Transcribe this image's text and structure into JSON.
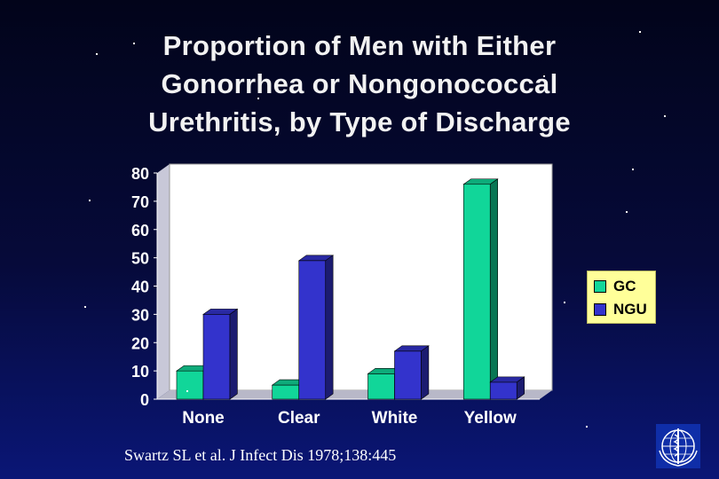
{
  "title_lines": [
    "Proportion of Men with Either",
    "Gonorrhea or Nongonococcal",
    "Urethritis, by Type of Discharge"
  ],
  "chart_data": {
    "type": "bar",
    "categories": [
      "None",
      "Clear",
      "White",
      "Yellow"
    ],
    "series": [
      {
        "name": "GC",
        "values": [
          10,
          5,
          9,
          76
        ],
        "color": "#11d699"
      },
      {
        "name": "NGU",
        "values": [
          30,
          49,
          17,
          6
        ],
        "color": "#3333cc"
      }
    ],
    "ylim": [
      0,
      80
    ],
    "yticks": [
      "0",
      "10",
      "20",
      "30",
      "40",
      "50",
      "60",
      "70",
      "80"
    ],
    "title": "",
    "xlabel": "",
    "ylabel": "",
    "legend_position": "right",
    "grid": false,
    "style": "3d-bar"
  },
  "colors": {
    "legend_bg": "#ffff99",
    "text": "#ffffff",
    "wall": "#ffffff"
  },
  "source": "Swartz SL et al. J Infect Dis 1978;138:445",
  "logo_icon": "who-emblem-icon"
}
